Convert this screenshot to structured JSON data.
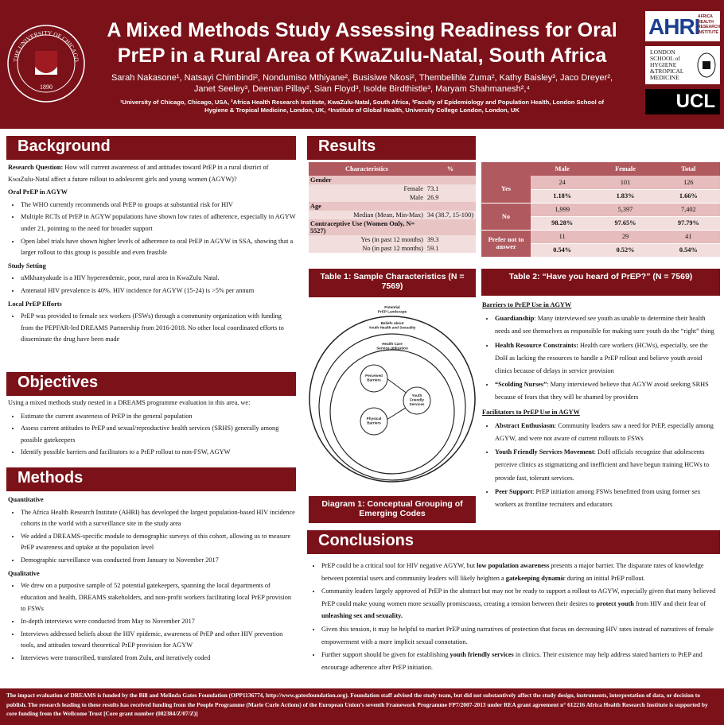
{
  "header": {
    "title_lines": [
      "A Mixed Methods Study Assessing Readiness for Oral",
      "PrEP in a Rural Area of KwaZulu-Natal, South Africa"
    ],
    "authors_lines": [
      "Sarah Nakasone¹, Natsayi Chimbindi², Nondumiso Mthiyane², Busisiwe Nkosi², Thembelihle Zuma², Kathy Baisley³, Jaco Dreyer²,",
      "Janet Seeley³, Deenan Pillay², Sian Floyd³, Isolde Birdthistle³, Maryam Shahmanesh²,⁴"
    ],
    "affiliations_lines": [
      "¹University of Chicago, Chicago, USA, ²Africa Health Research Institute, KwaZulu-Natal, South Africa, ³Faculty of Epidemiology and Population Health, London School of",
      "Hygiene & Tropical Medicine, London, UK, ⁴Institute of Global Health, University College London, London, UK"
    ],
    "logos": {
      "chicago_ring": "THE UNIVERSITY OF CHICAGO",
      "chicago_year": "1890",
      "ahri": "AHRI",
      "ahri_sub": [
        "AFRICA",
        "HEALTH",
        "RESEARCH",
        "INSTITUTE"
      ],
      "lshtm": [
        "LONDON",
        "SCHOOL of",
        "HYGIENE",
        "&TROPICAL",
        "MEDICINE"
      ],
      "ucl": "UCL"
    }
  },
  "background": {
    "title": "Background",
    "blocks": [
      {
        "paragraph": [
          {
            "bold": "Research Question:"
          },
          " How will current awareness of and attitudes toward PrEP in a rural district of KwaZulu-Natal affect a future rollout to adolescent girls and young women (AGYW)?"
        ]
      },
      {
        "heading": "Oral PrEP in AGYW"
      },
      {
        "bullets": [
          [
            "The WHO currently recommends oral PrEP to groups at substantial risk for HIV"
          ],
          [
            "Multiple RCTs of PrEP in AGYW populations have shown low rates of adherence, especially in AGYW under 21, pointing to the need for broader support"
          ],
          [
            "Open label trials have shown higher levels of adherence to oral PrEP in AGYW in SSA, showing that a larger rollout to this group is possible and even feasible"
          ]
        ]
      },
      {
        "heading": "Study Setting"
      },
      {
        "bullets": [
          [
            "uMkhanyakude is a HIV hyperendemic, poor, rural area in KwaZulu Natal."
          ],
          [
            "Antenatal HIV prevalence is 40%. HIV incidence for AGYW (15-24) is >5% per annum"
          ]
        ]
      },
      {
        "heading": "Local PrEP Efforts"
      },
      {
        "bullets": [
          [
            "PrEP was provided to female sex workers (FSWs) through a community organization with funding from the PEPFAR-led DREAMS Partnership from 2016-2018. No other local coordinated efforts to disseminate the drug have been made"
          ]
        ]
      }
    ]
  },
  "objectives": {
    "title": "Objectives",
    "blocks": [
      {
        "paragraph": [
          "Using a mixed methods study nested in a DREAMS programme evaluation in this area, we:"
        ]
      },
      {
        "bullets": [
          [
            "Estimate the current awareness of PrEP in the general population"
          ],
          [
            "Assess current attitudes to PrEP and sexual/reproductive health services (SRHS) generally among possible gatekeepers"
          ],
          [
            "Identify possible barriers and facilitators to a PrEP rollout to non-FSW, AGYW"
          ]
        ]
      }
    ]
  },
  "methods": {
    "title": "Methods",
    "blocks": [
      {
        "heading": "Quantitative"
      },
      {
        "bullets": [
          [
            "The Africa Health Research Institute (AHRI) has developed the largest population-based HIV incidence cohorts in the world with a surveillance site in the study area"
          ],
          [
            "We added a DREAMS-specific module to demographic surveys of this cohort, allowing us to measure PrEP awareness and uptake at the population level"
          ],
          [
            "Demographic surveillance was conducted from January to November 2017"
          ]
        ]
      },
      {
        "heading": "Qualitative"
      },
      {
        "bullets": [
          [
            "We drew on a purposive sample of 52 potential gatekeepers, spanning the local departments of education and health, DREAMS stakeholders, and non-profit workers facilitating local PrEP provision to FSWs"
          ],
          [
            "In-depth interviews were conducted from May to November 2017"
          ],
          [
            "Interviews addressed beliefs about the HIV epidemic, awareness of PrEP and other HIV prevention tools, and attitudes toward theoretical PrEP provision for AGYW"
          ],
          [
            "Interviews were transcribed, translated from Zulu, and iteratively coded"
          ]
        ]
      }
    ]
  },
  "results": {
    "title": "Results",
    "table1": {
      "columns": [
        "Characteristics",
        "%"
      ],
      "rows": [
        {
          "group": "Gender"
        },
        {
          "label": "Female",
          "value": "73.1"
        },
        {
          "label": "Male",
          "value": "26.9"
        },
        {
          "group": "Age"
        },
        {
          "label": "Median (Mean, Min-Max)",
          "value": "34 (38.7, 15-100)"
        },
        {
          "group": "Contraceptive Use (Women Only, N= 5527)"
        },
        {
          "label": "Yes (in past 12 months)",
          "value": "39.3"
        },
        {
          "label": "No (in past 12 months)",
          "value": "59.1"
        }
      ]
    },
    "table1_caption": "Table 1: Sample Characteristics (N = 7569)",
    "table2": {
      "columns": [
        "Male",
        "Female",
        "Total"
      ],
      "rows": [
        {
          "label": "Yes",
          "counts": [
            "24",
            "101",
            "126"
          ],
          "percents": [
            "1.18%",
            "1.83%",
            "1.66%"
          ]
        },
        {
          "label": "No",
          "counts": [
            "1,999",
            "5,397",
            "7,402"
          ],
          "percents": [
            "98.28%",
            "97.65%",
            "97.79%"
          ]
        },
        {
          "label": "Prefer not to answer",
          "counts": [
            "11",
            "29",
            "41"
          ],
          "percents": [
            "0.54%",
            "0.52%",
            "0.54%"
          ]
        }
      ]
    },
    "table2_caption": "Table 2: “Have you heard of PrEP?” (N = 7569)",
    "diagram": {
      "landscape": [
        "Potential",
        "PrEP Landscape"
      ],
      "beliefs": [
        "Beliefs about",
        "Youth Health and Sexuality"
      ],
      "health_care": [
        "Health Care",
        "Service Utilization"
      ],
      "perceived": [
        "Perceived",
        "Barriers"
      ],
      "physical": [
        "Physical",
        "Barriers"
      ],
      "youth": [
        "Youth",
        "Friendly",
        "Services"
      ]
    },
    "diagram_caption": "Diagram 1: Conceptual Grouping of Emerging Codes",
    "findings": [
      {
        "heading": "Barriers to PrEP Use in AGYW"
      },
      {
        "bullets": [
          [
            {
              "bold": "Guardianship"
            },
            ": Many interviewed see youth as unable to determine their health needs and see themselves as responsible for making sure youth do the “right” thing"
          ],
          [
            {
              "bold": "Health Resource Constraints:"
            },
            " Health care workers (HCWs), especially, see the DoH as lacking the resources to handle a PrEP rollout and believe youth avoid clinics because of delays in service provision"
          ],
          [
            {
              "bold": "“Scolding Nurses”"
            },
            ": Many interviewed believe that AGYW avoid seeking SRHS because of fears that they will be shamed by providers"
          ]
        ]
      },
      {
        "heading": "Facilitators to PrEP Use in AGYW"
      },
      {
        "bullets": [
          [
            {
              "bold": "Abstract Enthusiasm"
            },
            ": Community leaders saw a need for PrEP, especially among AGYW, and were not aware of current rollouts to FSWs"
          ],
          [
            {
              "bold": "Youth Friendly Services Movement"
            },
            ": DoH officials recognize that adolescents perceive clinics as stigmatizing and inefficient and have begun training HCWs to provide fast, tolerant services."
          ],
          [
            {
              "bold": "Peer Support"
            },
            ": PrEP initiation among FSWs benefitted from using former sex workers as frontline recruiters and educators"
          ]
        ]
      }
    ]
  },
  "conclusions": {
    "title": "Conclusions",
    "blocks": [
      {
        "bullets": [
          [
            "PrEP could be a critical tool for HIV negative AGYW, but ",
            {
              "bold": "low population awareness"
            },
            " presents a major barrier. The disparate rates of knowledge between potential users and community leaders will likely heighten a ",
            {
              "bold": "gatekeeping dynamic"
            },
            " during an initial PrEP rollout."
          ],
          [
            "Community leaders largely approved of PrEP in the abstract but may not be ready to support a rollout to AGYW, especially given that many believed PrEP could make young women more sexually promiscuous, creating a tension between their desires to ",
            {
              "bold": "protect youth"
            },
            " from HIV and their fear of ",
            {
              "bold": "unleashing sex and sexuality."
            }
          ],
          [
            "Given this tension, it may be helpful to market PrEP using narratives of protection that focus on decreasing HIV rates instead of narratives of female empowerment with a more implicit sexual connotation."
          ],
          [
            "Further support should be given for establishing ",
            {
              "bold": "youth friendly services"
            },
            " in clinics. Their existence may help address stated barriers to PrEP and encourage adherence after PrEP initiation."
          ]
        ]
      }
    ]
  },
  "footer": "The impact evaluation of DREAMS is funded by the Bill and Melinda Gates Foundation (OPP1136774, http://www.gatesfoundation.org). Foundation staff advised the study team, but did not substantively affect the study design, instruments, interpretation of data, or decision to publish. The research leading to these results has received funding from the People Programme (Marie Curie Actions) of the European Union’s seventh Framework Programme FP7/2007-2013 under REA grant agreement n° 612216 Africa Health Research Institute is supported by core funding from the Wellcome Trust [Core grant number (082384/Z/07/Z)]"
}
